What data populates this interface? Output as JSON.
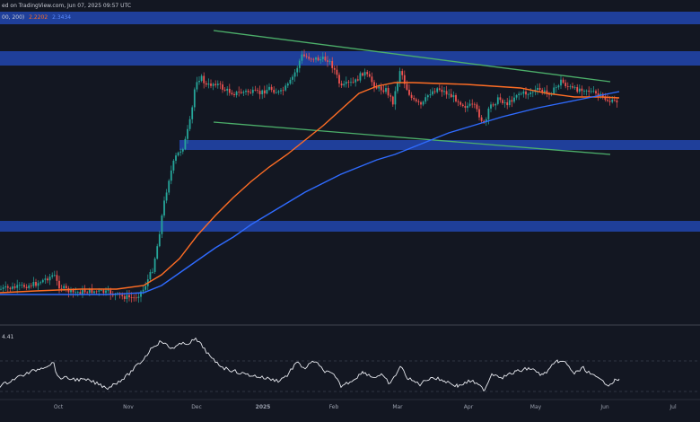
{
  "header": {
    "published": "ed on TradingView.com, Jun 07, 2025 09:57 UTC"
  },
  "main_pane": {
    "ma_legend": {
      "prefix": "00, 200)",
      "ma100": "2.2202",
      "ma200": "2.3434"
    },
    "ma_colors": {
      "ma100": "#ff6d24",
      "ma200": "#2f6bff"
    },
    "zone_color": "#1f3f9a",
    "trendline_color": "#4caf6a"
  },
  "rsi_pane": {
    "value": "4.41"
  },
  "time_axis": {
    "labels": [
      "Oct",
      "Nov",
      "Dec",
      "2025",
      "Feb",
      "Mar",
      "Apr",
      "May",
      "Jun",
      "Jul"
    ]
  },
  "chart_data": {
    "type": "candlestick",
    "title": "",
    "indicators": [
      "MA 100",
      "MA 200",
      "RSI"
    ],
    "sr_zones": [
      "top",
      "upper",
      "middle",
      "lower"
    ],
    "channel": "descending triangle (two green trendlines)",
    "grid": false
  }
}
